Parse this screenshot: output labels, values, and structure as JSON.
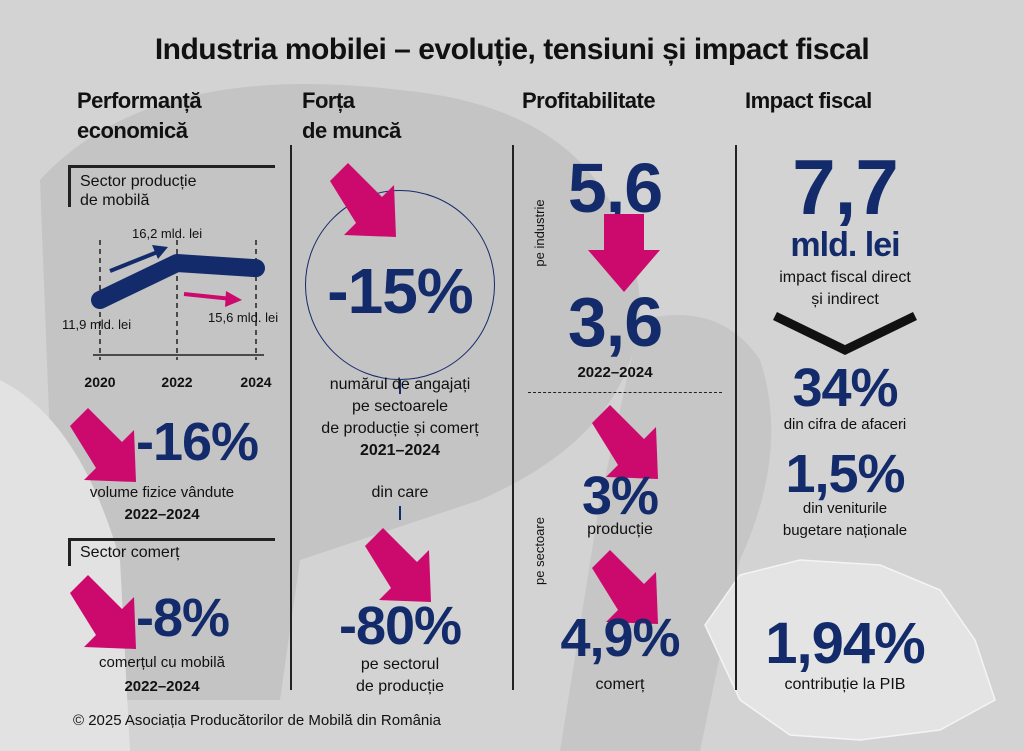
{
  "title": "Industria mobilei – evoluție, tensiuni și impact fiscal",
  "colors": {
    "navy": "#142b6b",
    "magenta": "#cc0a6e",
    "background": "#d3d3d3"
  },
  "performance": {
    "heading_1": "Performanță",
    "heading_2": "economică",
    "production_label_1": "Sector producție",
    "production_label_2": "de mobilă",
    "chart_data": {
      "type": "line",
      "categories": [
        "2020",
        "2022",
        "2024"
      ],
      "values": [
        11.9,
        16.2,
        15.6
      ],
      "labels": [
        "11,9 mld. lei",
        "16,2 mld. lei",
        "15,6 mld. lei"
      ],
      "trend_icons": [
        "arrow-up-right-icon",
        "arrow-right-icon"
      ]
    },
    "volume_value": "-16%",
    "volume_label": "volume fizice vândute",
    "volume_period": "2022–2024",
    "commerce_label": "Sector comerț",
    "commerce_value": "-8%",
    "commerce_desc": "comerțul cu mobilă",
    "commerce_period": "2022–2024"
  },
  "workforce": {
    "heading_1": "Forța",
    "heading_2": "de muncă",
    "value": "-15%",
    "desc_1": "numărul de angajați",
    "desc_2": "pe sectoarele",
    "desc_3": "de producție și comerț",
    "period": "2021–2024",
    "of_which": "din care",
    "production_value": "-80%",
    "production_desc_1": "pe sectorul",
    "production_desc_2": "de producție"
  },
  "profitability": {
    "heading": "Profitabilitate",
    "industry_label": "pe industrie",
    "from": "5,6",
    "to": "3,6",
    "period": "2022–2024",
    "sectors_label": "pe sectoare",
    "production_value": "3%",
    "production_label": "producție",
    "commerce_value": "4,9%",
    "commerce_label": "comerț"
  },
  "fiscal": {
    "heading": "Impact fiscal",
    "value": "7,7",
    "unit": "mld. lei",
    "desc_1": "impact fiscal direct",
    "desc_2": "și indirect",
    "turnover_value": "34%",
    "turnover_desc": "din cifra de afaceri",
    "budget_value": "1,5%",
    "budget_desc_1": "din veniturile",
    "budget_desc_2": "bugetare naționale",
    "gdp_value": "1,94%",
    "gdp_desc": "contribuție la PIB"
  },
  "footer": "© 2025 Asociația Producătorilor de Mobilă din România"
}
